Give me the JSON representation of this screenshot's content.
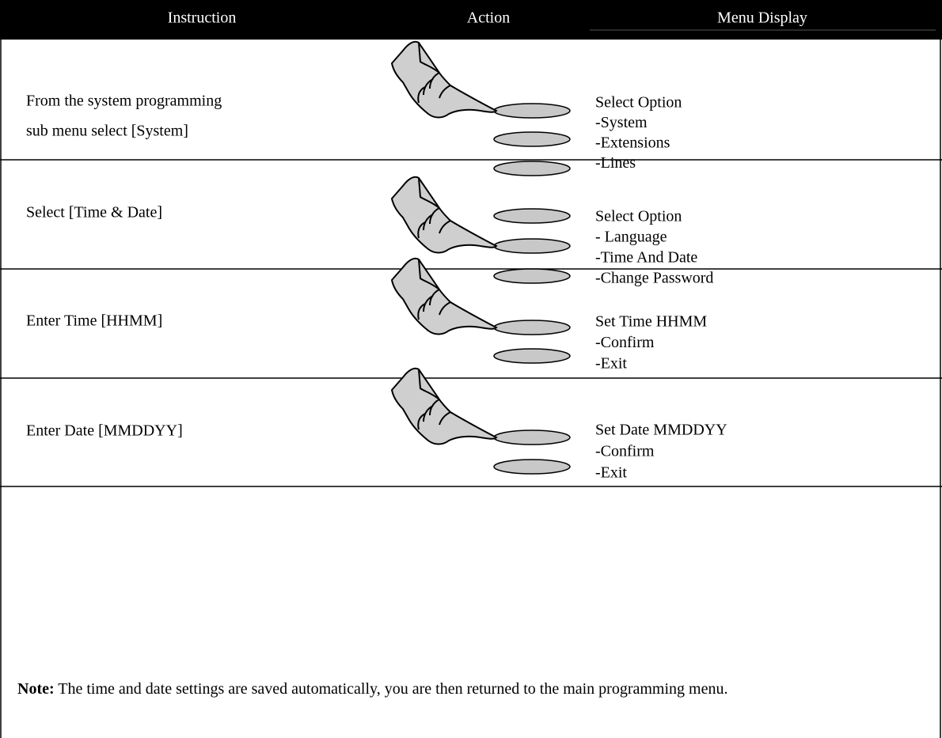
{
  "header": {
    "columns": [
      "Instruction",
      "Action",
      "Menu Display"
    ]
  },
  "rows": [
    {
      "instruction": [
        "From the system programming",
        "sub menu select [System]"
      ],
      "menu": [
        "Select Option",
        "-System",
        "-Extensions",
        "-Lines"
      ]
    },
    {
      "instruction": [
        "Select [Time & Date]"
      ],
      "menu": [
        "Select Option",
        "- Language",
        "-Time And Date",
        "-Change Password"
      ]
    },
    {
      "instruction": [
        "Enter Time [HHMM]"
      ],
      "menu": [
        "Set Time HHMM",
        "-Confirm",
        "-Exit"
      ]
    },
    {
      "instruction": [
        "Enter Date [MMDDYY]"
      ],
      "menu": [
        "Set Date MMDDYY",
        "-Confirm",
        "-Exit"
      ]
    }
  ],
  "note": {
    "label": "Note:",
    "text": "The time and date settings are saved automatically, you are then returned to the main programming menu."
  }
}
